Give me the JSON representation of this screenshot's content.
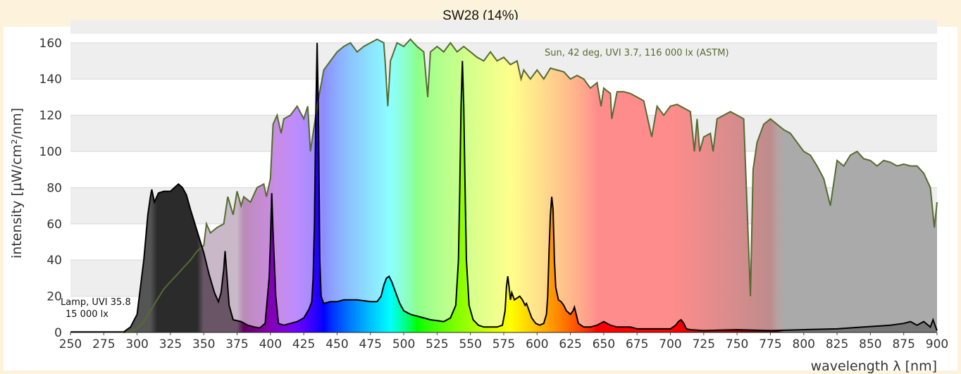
{
  "title": "SW28 (14%)",
  "chart_data": {
    "type": "line",
    "title": "SW28 (14%)",
    "xlabel": "wavelength λ [nm]",
    "ylabel": "intensity [µW/cm²/nm]",
    "xlim": [
      250,
      900
    ],
    "ylim": [
      0,
      165
    ],
    "x_ticks": [
      250,
      275,
      300,
      325,
      350,
      375,
      400,
      425,
      450,
      475,
      500,
      525,
      550,
      575,
      600,
      625,
      650,
      675,
      700,
      725,
      750,
      775,
      800,
      825,
      850,
      875,
      900
    ],
    "y_ticks": [
      0,
      20,
      40,
      60,
      80,
      100,
      120,
      140,
      160
    ],
    "grid": "horizontal alternating bands",
    "annotations": [
      {
        "text": "Sun, 42 deg, UVI 3.7, 116 000 lx (ASTM)",
        "series": "sun"
      },
      {
        "text": "Lamp, UVI 35.8",
        "series": "lamp"
      },
      {
        "text": "15 000 lx",
        "series": "lamp"
      }
    ],
    "series": [
      {
        "id": "sun",
        "color": "#556b2f",
        "points": [
          [
            290,
            0
          ],
          [
            295,
            0.5
          ],
          [
            300,
            2
          ],
          [
            305,
            6
          ],
          [
            310,
            12
          ],
          [
            315,
            18
          ],
          [
            320,
            24
          ],
          [
            325,
            28
          ],
          [
            330,
            32
          ],
          [
            335,
            36
          ],
          [
            340,
            40
          ],
          [
            345,
            45
          ],
          [
            350,
            48
          ],
          [
            352,
            60
          ],
          [
            355,
            55
          ],
          [
            360,
            58
          ],
          [
            365,
            60
          ],
          [
            368,
            75
          ],
          [
            372,
            65
          ],
          [
            375,
            78
          ],
          [
            378,
            70
          ],
          [
            380,
            75
          ],
          [
            385,
            72
          ],
          [
            390,
            80
          ],
          [
            395,
            82
          ],
          [
            397,
            75
          ],
          [
            400,
            85
          ],
          [
            402,
            115
          ],
          [
            405,
            120
          ],
          [
            408,
            110
          ],
          [
            410,
            118
          ],
          [
            415,
            120
          ],
          [
            420,
            125
          ],
          [
            425,
            118
          ],
          [
            428,
            125
          ],
          [
            430,
            100
          ],
          [
            432,
            110
          ],
          [
            435,
            125
          ],
          [
            440,
            145
          ],
          [
            445,
            150
          ],
          [
            450,
            155
          ],
          [
            455,
            158
          ],
          [
            460,
            160
          ],
          [
            465,
            155
          ],
          [
            470,
            158
          ],
          [
            475,
            160
          ],
          [
            480,
            162
          ],
          [
            485,
            160
          ],
          [
            486,
            150
          ],
          [
            488,
            125
          ],
          [
            490,
            150
          ],
          [
            495,
            160
          ],
          [
            500,
            158
          ],
          [
            505,
            162
          ],
          [
            510,
            158
          ],
          [
            515,
            155
          ],
          [
            518,
            130
          ],
          [
            520,
            155
          ],
          [
            525,
            158
          ],
          [
            530,
            155
          ],
          [
            535,
            160
          ],
          [
            540,
            155
          ],
          [
            545,
            158
          ],
          [
            550,
            155
          ],
          [
            555,
            152
          ],
          [
            560,
            150
          ],
          [
            565,
            155
          ],
          [
            570,
            150
          ],
          [
            575,
            152
          ],
          [
            580,
            148
          ],
          [
            585,
            150
          ],
          [
            588,
            140
          ],
          [
            590,
            145
          ],
          [
            595,
            140
          ],
          [
            600,
            145
          ],
          [
            605,
            140
          ],
          [
            610,
            146
          ],
          [
            615,
            145
          ],
          [
            620,
            144
          ],
          [
            625,
            140
          ],
          [
            630,
            142
          ],
          [
            635,
            140
          ],
          [
            640,
            135
          ],
          [
            645,
            138
          ],
          [
            648,
            125
          ],
          [
            650,
            135
          ],
          [
            655,
            132
          ],
          [
            656,
            118
          ],
          [
            660,
            133
          ],
          [
            665,
            133
          ],
          [
            670,
            132
          ],
          [
            675,
            130
          ],
          [
            680,
            128
          ],
          [
            686,
            108
          ],
          [
            690,
            125
          ],
          [
            695,
            120
          ],
          [
            700,
            125
          ],
          [
            705,
            126
          ],
          [
            710,
            124
          ],
          [
            715,
            122
          ],
          [
            718,
            100
          ],
          [
            720,
            118
          ],
          [
            722,
            100
          ],
          [
            725,
            108
          ],
          [
            730,
            110
          ],
          [
            732,
            100
          ],
          [
            735,
            118
          ],
          [
            740,
            120
          ],
          [
            745,
            122
          ],
          [
            750,
            120
          ],
          [
            755,
            118
          ],
          [
            758,
            60
          ],
          [
            760,
            20
          ],
          [
            762,
            90
          ],
          [
            765,
            105
          ],
          [
            770,
            115
          ],
          [
            775,
            118
          ],
          [
            780,
            115
          ],
          [
            785,
            112
          ],
          [
            790,
            110
          ],
          [
            795,
            105
          ],
          [
            800,
            100
          ],
          [
            805,
            98
          ],
          [
            810,
            92
          ],
          [
            815,
            85
          ],
          [
            820,
            70
          ],
          [
            822,
            80
          ],
          [
            825,
            95
          ],
          [
            830,
            92
          ],
          [
            835,
            98
          ],
          [
            840,
            100
          ],
          [
            845,
            96
          ],
          [
            850,
            95
          ],
          [
            855,
            92
          ],
          [
            860,
            95
          ],
          [
            865,
            94
          ],
          [
            870,
            92
          ],
          [
            875,
            93
          ],
          [
            880,
            92
          ],
          [
            885,
            92
          ],
          [
            890,
            88
          ],
          [
            895,
            80
          ],
          [
            898,
            58
          ],
          [
            900,
            72
          ]
        ]
      },
      {
        "id": "lamp",
        "color": "#000000",
        "points": [
          [
            250,
            0.3
          ],
          [
            290,
            0.3
          ],
          [
            295,
            3
          ],
          [
            300,
            10
          ],
          [
            305,
            40
          ],
          [
            308,
            65
          ],
          [
            310,
            75
          ],
          [
            311,
            79
          ],
          [
            313,
            72
          ],
          [
            316,
            77
          ],
          [
            320,
            78
          ],
          [
            325,
            78
          ],
          [
            328,
            80
          ],
          [
            331,
            82
          ],
          [
            334,
            80
          ],
          [
            337,
            76
          ],
          [
            340,
            68
          ],
          [
            345,
            56
          ],
          [
            350,
            44
          ],
          [
            354,
            32
          ],
          [
            358,
            22
          ],
          [
            361,
            17
          ],
          [
            363,
            22
          ],
          [
            365,
            35
          ],
          [
            366,
            45
          ],
          [
            367,
            35
          ],
          [
            369,
            15
          ],
          [
            372,
            7
          ],
          [
            378,
            6
          ],
          [
            383,
            4
          ],
          [
            388,
            3
          ],
          [
            392,
            2.5
          ],
          [
            396,
            5
          ],
          [
            399,
            30
          ],
          [
            400,
            50
          ],
          [
            401,
            77
          ],
          [
            402,
            55
          ],
          [
            404,
            20
          ],
          [
            406,
            5
          ],
          [
            410,
            4
          ],
          [
            415,
            5
          ],
          [
            420,
            6
          ],
          [
            425,
            8
          ],
          [
            429,
            13
          ],
          [
            431,
            17
          ],
          [
            432,
            30
          ],
          [
            433,
            60
          ],
          [
            434,
            120
          ],
          [
            435,
            160
          ],
          [
            436,
            120
          ],
          [
            437,
            40
          ],
          [
            438,
            20
          ],
          [
            440,
            16
          ],
          [
            445,
            17
          ],
          [
            450,
            17
          ],
          [
            455,
            18
          ],
          [
            460,
            18
          ],
          [
            465,
            18
          ],
          [
            470,
            17.5
          ],
          [
            475,
            17
          ],
          [
            480,
            17
          ],
          [
            483,
            20
          ],
          [
            485,
            26
          ],
          [
            487,
            30
          ],
          [
            489,
            31
          ],
          [
            491,
            28
          ],
          [
            494,
            22
          ],
          [
            497,
            16
          ],
          [
            500,
            12
          ],
          [
            505,
            10
          ],
          [
            510,
            9
          ],
          [
            515,
            8
          ],
          [
            520,
            7
          ],
          [
            525,
            6.5
          ],
          [
            530,
            6
          ],
          [
            535,
            8
          ],
          [
            539,
            15
          ],
          [
            541,
            40
          ],
          [
            542,
            80
          ],
          [
            543,
            125
          ],
          [
            544,
            150
          ],
          [
            545,
            125
          ],
          [
            546,
            80
          ],
          [
            547,
            40
          ],
          [
            549,
            15
          ],
          [
            552,
            7
          ],
          [
            556,
            4
          ],
          [
            560,
            3
          ],
          [
            565,
            3
          ],
          [
            570,
            3
          ],
          [
            574,
            4
          ],
          [
            576,
            12
          ],
          [
            577,
            25
          ],
          [
            578,
            31
          ],
          [
            579,
            25
          ],
          [
            580,
            18
          ],
          [
            581,
            22
          ],
          [
            583,
            18
          ],
          [
            585,
            19
          ],
          [
            587,
            20
          ],
          [
            589,
            18
          ],
          [
            591,
            15
          ],
          [
            592,
            16
          ],
          [
            594,
            12
          ],
          [
            596,
            8
          ],
          [
            599,
            5
          ],
          [
            602,
            4
          ],
          [
            605,
            5
          ],
          [
            607,
            10
          ],
          [
            608,
            20
          ],
          [
            609,
            45
          ],
          [
            610,
            65
          ],
          [
            611,
            75
          ],
          [
            612,
            68
          ],
          [
            613,
            40
          ],
          [
            614,
            25
          ],
          [
            616,
            18
          ],
          [
            618,
            17
          ],
          [
            620,
            15
          ],
          [
            622,
            12
          ],
          [
            625,
            10
          ],
          [
            627,
            12
          ],
          [
            628,
            14
          ],
          [
            629,
            11
          ],
          [
            631,
            5
          ],
          [
            635,
            3
          ],
          [
            640,
            3
          ],
          [
            645,
            4
          ],
          [
            650,
            6
          ],
          [
            655,
            4
          ],
          [
            660,
            3
          ],
          [
            665,
            3
          ],
          [
            670,
            3
          ],
          [
            675,
            2
          ],
          [
            680,
            2
          ],
          [
            690,
            2
          ],
          [
            700,
            2
          ],
          [
            704,
            4
          ],
          [
            706,
            6
          ],
          [
            708,
            7
          ],
          [
            710,
            5
          ],
          [
            712,
            2
          ],
          [
            715,
            1.5
          ],
          [
            725,
            1
          ],
          [
            750,
            1.5
          ],
          [
            775,
            1
          ],
          [
            800,
            1.5
          ],
          [
            825,
            2
          ],
          [
            845,
            3
          ],
          [
            865,
            4
          ],
          [
            875,
            5
          ],
          [
            880,
            6
          ],
          [
            885,
            4
          ],
          [
            890,
            6
          ],
          [
            895,
            3
          ],
          [
            897,
            7
          ],
          [
            900,
            1
          ]
        ]
      }
    ]
  },
  "colors": {
    "background": "#fdf3dc",
    "plot_bg": "#ffffff",
    "band": "#eeeeee",
    "sun_line": "#556b2f",
    "lamp_line": "#000000"
  }
}
